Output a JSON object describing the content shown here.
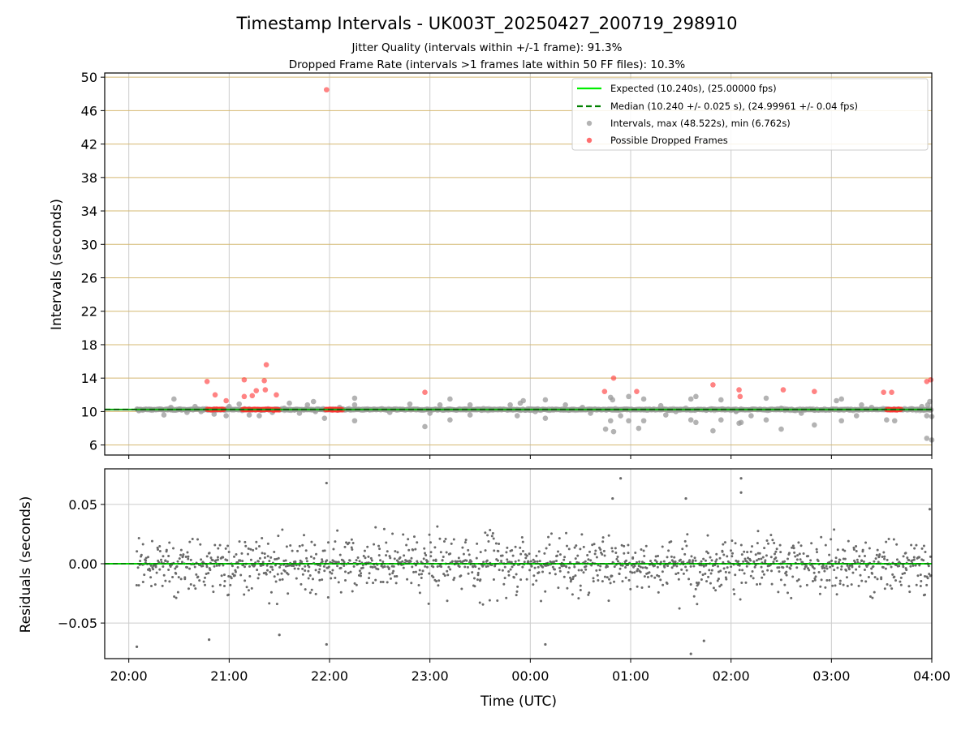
{
  "figure": {
    "title": "Timestamp Intervals - UK003T_20250427_200719_298910",
    "subtitle_1": "Jitter Quality (intervals within +/-1 frame): 91.3%",
    "subtitle_2": "Dropped Frame Rate (intervals >1 frames late within 50 FF files): 10.3%"
  },
  "chart_data": [
    {
      "type": "scatter",
      "panel": "top",
      "title": "",
      "xlabel": "",
      "ylabel": "Intervals (seconds)",
      "xlim_hours": [
        19.76,
        28.0
      ],
      "ylim": [
        4.8,
        50.5
      ],
      "yticks": [
        6,
        10,
        14,
        18,
        22,
        26,
        30,
        34,
        38,
        42,
        46,
        50
      ],
      "grid": true,
      "legend_placement": "top-right",
      "legend": [
        "Expected (10.240s), (25.00000 fps)",
        "Median (10.240 +/- 0.025 s), (24.99961 +/- 0.04 fps)",
        "Intervals, max (48.522s), min (6.762s)",
        "Possible Dropped Frames"
      ],
      "expected_interval": 10.24,
      "median_interval": 10.24,
      "colors": {
        "expected": "#00ee00",
        "median": "#008000",
        "intervals": "#9a9a9a",
        "dropped": "#ff3030",
        "hgrid": "#d4b870",
        "vgrid": "#cccccc"
      },
      "dense_band": {
        "value": 10.24,
        "x_start_hour": 20.08,
        "x_end_hour": 28.0
      },
      "dropped_band_segments": [
        [
          20.78,
          20.95
        ],
        [
          21.13,
          21.5
        ],
        [
          21.96,
          22.13
        ],
        [
          27.55,
          27.7
        ]
      ],
      "intervals": [
        [
          20.1,
          10.1
        ],
        [
          20.22,
          10.2
        ],
        [
          20.35,
          9.6
        ],
        [
          20.42,
          10.5
        ],
        [
          20.45,
          11.5
        ],
        [
          20.5,
          10.3
        ],
        [
          20.58,
          9.9
        ],
        [
          20.66,
          10.6
        ],
        [
          20.72,
          10.0
        ],
        [
          20.85,
          9.7
        ],
        [
          20.97,
          9.5
        ],
        [
          21.0,
          10.6
        ],
        [
          21.1,
          10.9
        ],
        [
          21.2,
          9.6
        ],
        [
          21.3,
          9.5
        ],
        [
          21.43,
          9.9
        ],
        [
          21.55,
          10.4
        ],
        [
          21.6,
          11.0
        ],
        [
          21.65,
          10.2
        ],
        [
          21.7,
          9.8
        ],
        [
          21.78,
          10.8
        ],
        [
          21.84,
          11.2
        ],
        [
          21.86,
          10.0
        ],
        [
          21.95,
          9.2
        ],
        [
          22.1,
          10.5
        ],
        [
          22.25,
          10.8
        ],
        [
          22.25,
          11.6
        ],
        [
          22.25,
          8.9
        ],
        [
          22.4,
          10.2
        ],
        [
          22.6,
          9.9
        ],
        [
          22.8,
          10.9
        ],
        [
          22.95,
          8.2
        ],
        [
          23.0,
          9.8
        ],
        [
          23.1,
          10.8
        ],
        [
          23.2,
          11.5
        ],
        [
          23.2,
          9.0
        ],
        [
          23.35,
          10.3
        ],
        [
          23.4,
          10.8
        ],
        [
          23.4,
          9.6
        ],
        [
          23.6,
          10.2
        ],
        [
          23.8,
          10.8
        ],
        [
          23.87,
          9.5
        ],
        [
          23.9,
          11.0
        ],
        [
          23.93,
          11.3
        ],
        [
          24.05,
          10.0
        ],
        [
          24.15,
          11.4
        ],
        [
          24.15,
          9.2
        ],
        [
          24.3,
          10.2
        ],
        [
          24.35,
          10.8
        ],
        [
          24.52,
          10.5
        ],
        [
          24.6,
          9.8
        ],
        [
          24.75,
          7.9
        ],
        [
          24.8,
          8.9
        ],
        [
          24.8,
          11.7
        ],
        [
          24.82,
          11.4
        ],
        [
          24.83,
          7.6
        ],
        [
          24.9,
          9.5
        ],
        [
          24.98,
          11.8
        ],
        [
          24.98,
          8.9
        ],
        [
          25.08,
          8.0
        ],
        [
          25.13,
          11.5
        ],
        [
          25.13,
          8.9
        ],
        [
          25.3,
          10.7
        ],
        [
          25.35,
          9.6
        ],
        [
          25.45,
          10.0
        ],
        [
          25.55,
          10.4
        ],
        [
          25.6,
          11.5
        ],
        [
          25.65,
          11.8
        ],
        [
          25.6,
          9.0
        ],
        [
          25.65,
          8.7
        ],
        [
          25.8,
          10.2
        ],
        [
          25.82,
          7.7
        ],
        [
          25.9,
          11.4
        ],
        [
          25.9,
          9.0
        ],
        [
          26.05,
          10.0
        ],
        [
          26.08,
          8.6
        ],
        [
          26.1,
          8.7
        ],
        [
          26.2,
          9.5
        ],
        [
          26.35,
          11.6
        ],
        [
          26.35,
          9.0
        ],
        [
          26.5,
          10.4
        ],
        [
          26.5,
          7.9
        ],
        [
          26.7,
          9.8
        ],
        [
          26.83,
          8.4
        ],
        [
          26.95,
          10.2
        ],
        [
          27.05,
          11.3
        ],
        [
          27.1,
          11.5
        ],
        [
          27.1,
          8.9
        ],
        [
          27.25,
          9.5
        ],
        [
          27.3,
          10.8
        ],
        [
          27.4,
          10.5
        ],
        [
          27.55,
          9.0
        ],
        [
          27.63,
          8.9
        ],
        [
          27.8,
          10.3
        ],
        [
          27.9,
          10.6
        ],
        [
          27.95,
          9.5
        ],
        [
          27.96,
          10.8
        ],
        [
          27.95,
          6.8
        ],
        [
          27.98,
          11.2
        ],
        [
          28.0,
          6.6
        ],
        [
          28.0,
          9.4
        ]
      ],
      "dropped_frames": [
        [
          20.78,
          13.6
        ],
        [
          20.86,
          12.0
        ],
        [
          20.97,
          11.3
        ],
        [
          21.15,
          13.8
        ],
        [
          21.15,
          11.8
        ],
        [
          21.23,
          11.9
        ],
        [
          21.27,
          12.5
        ],
        [
          21.35,
          13.7
        ],
        [
          21.36,
          12.6
        ],
        [
          21.37,
          15.6
        ],
        [
          21.47,
          12.0
        ],
        [
          21.97,
          48.5
        ],
        [
          22.95,
          12.3
        ],
        [
          24.74,
          12.4
        ],
        [
          24.83,
          14.0
        ],
        [
          25.06,
          12.4
        ],
        [
          25.82,
          13.2
        ],
        [
          26.08,
          12.6
        ],
        [
          26.09,
          11.8
        ],
        [
          26.52,
          12.6
        ],
        [
          26.83,
          12.4
        ],
        [
          27.52,
          12.3
        ],
        [
          27.6,
          12.3
        ],
        [
          27.95,
          13.6
        ],
        [
          27.99,
          13.8
        ]
      ]
    },
    {
      "type": "scatter",
      "panel": "bottom",
      "title": "",
      "xlabel": "Time (UTC)",
      "ylabel": "Residuals (seconds)",
      "xlim_hours": [
        19.76,
        28.0
      ],
      "ylim": [
        -0.08,
        0.08
      ],
      "yticks": [
        -0.05,
        0.0,
        0.05
      ],
      "ytick_labels": [
        "−0.05",
        "0.00",
        "0.05"
      ],
      "xticks_hours": [
        20,
        21,
        22,
        23,
        24,
        25,
        26,
        27,
        28
      ],
      "xtick_labels": [
        "20:00",
        "21:00",
        "22:00",
        "23:00",
        "00:00",
        "01:00",
        "02:00",
        "03:00",
        "04:00"
      ],
      "grid": true,
      "zero_line_color": "#00cc00",
      "point_color": "#6a6a6a",
      "residual_spread_sd": 0.017,
      "approx_point_count": 1450,
      "outliers": [
        [
          20.08,
          -0.07
        ],
        [
          21.97,
          0.068
        ],
        [
          21.97,
          -0.068
        ],
        [
          24.15,
          -0.068
        ],
        [
          24.9,
          0.072
        ],
        [
          24.82,
          0.055
        ],
        [
          25.6,
          -0.076
        ],
        [
          25.73,
          -0.065
        ],
        [
          26.1,
          0.072
        ],
        [
          26.1,
          0.06
        ],
        [
          25.55,
          0.055
        ],
        [
          20.8,
          -0.064
        ],
        [
          21.5,
          -0.06
        ],
        [
          27.98,
          0.046
        ]
      ]
    }
  ]
}
